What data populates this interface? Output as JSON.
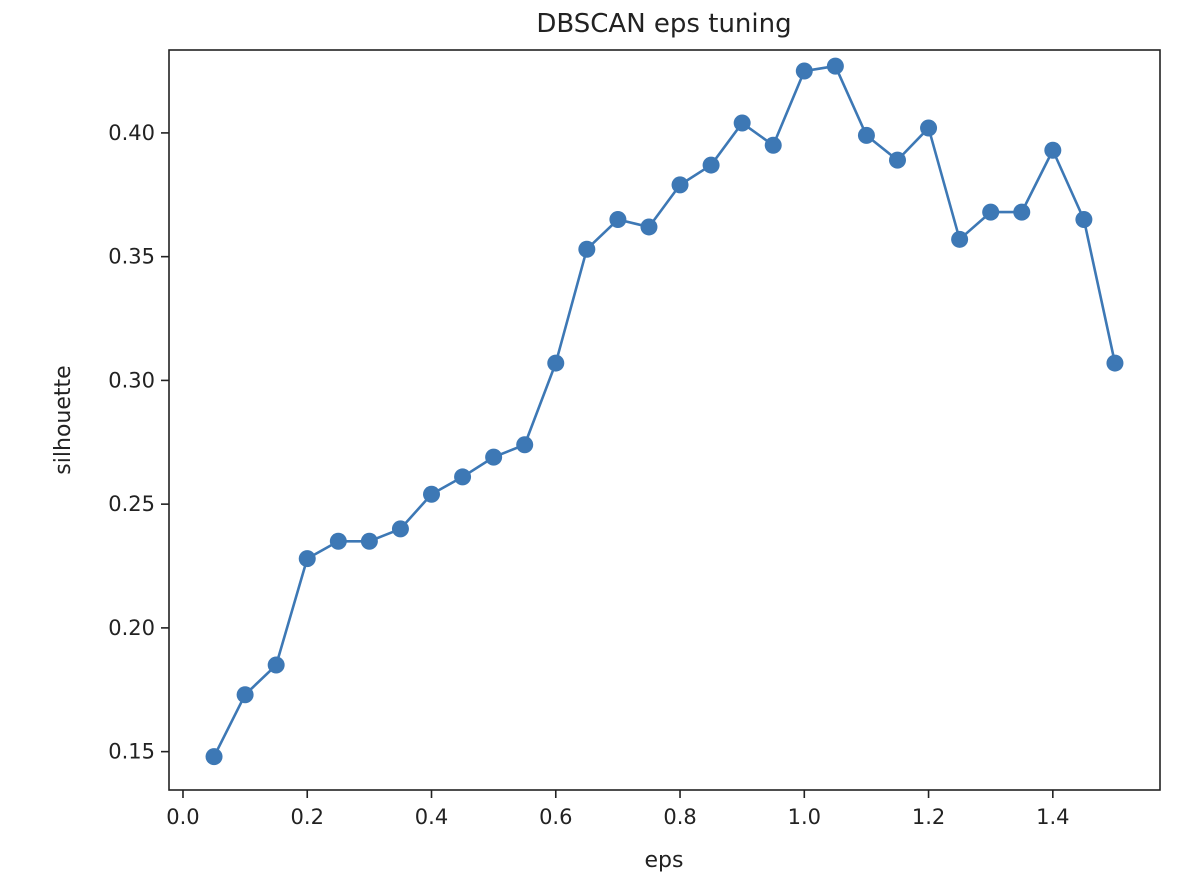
{
  "chart_data": {
    "type": "line",
    "title": "DBSCAN eps tuning",
    "xlabel": "eps",
    "ylabel": "silhouette",
    "xlim": [
      -0.0225,
      1.5725
    ],
    "ylim": [
      0.1345,
      0.4335
    ],
    "xticks": [
      0.0,
      0.2,
      0.4,
      0.6,
      0.8,
      1.0,
      1.2,
      1.4
    ],
    "xtick_labels": [
      "0.0",
      "0.2",
      "0.4",
      "0.6",
      "0.8",
      "1.0",
      "1.2",
      "1.4"
    ],
    "yticks": [
      0.15,
      0.2,
      0.25,
      0.3,
      0.35,
      0.4
    ],
    "ytick_labels": [
      "0.15",
      "0.20",
      "0.25",
      "0.30",
      "0.35",
      "0.40"
    ],
    "grid": false,
    "legend": "none",
    "marker": "circle",
    "series": [
      {
        "color": "#3d78b5",
        "x": [
          0.05,
          0.1,
          0.15,
          0.2,
          0.25,
          0.3,
          0.35,
          0.4,
          0.45,
          0.5,
          0.55,
          0.6,
          0.65,
          0.7,
          0.75,
          0.8,
          0.85,
          0.9,
          0.95,
          1.0,
          1.05,
          1.1,
          1.15,
          1.2,
          1.25,
          1.3,
          1.35,
          1.4,
          1.45,
          1.5
        ],
        "y": [
          0.148,
          0.173,
          0.185,
          0.228,
          0.235,
          0.235,
          0.24,
          0.254,
          0.261,
          0.269,
          0.274,
          0.307,
          0.353,
          0.365,
          0.362,
          0.379,
          0.387,
          0.404,
          0.395,
          0.425,
          0.427,
          0.399,
          0.389,
          0.402,
          0.357,
          0.368,
          0.368,
          0.393,
          0.365,
          0.307
        ]
      }
    ]
  }
}
